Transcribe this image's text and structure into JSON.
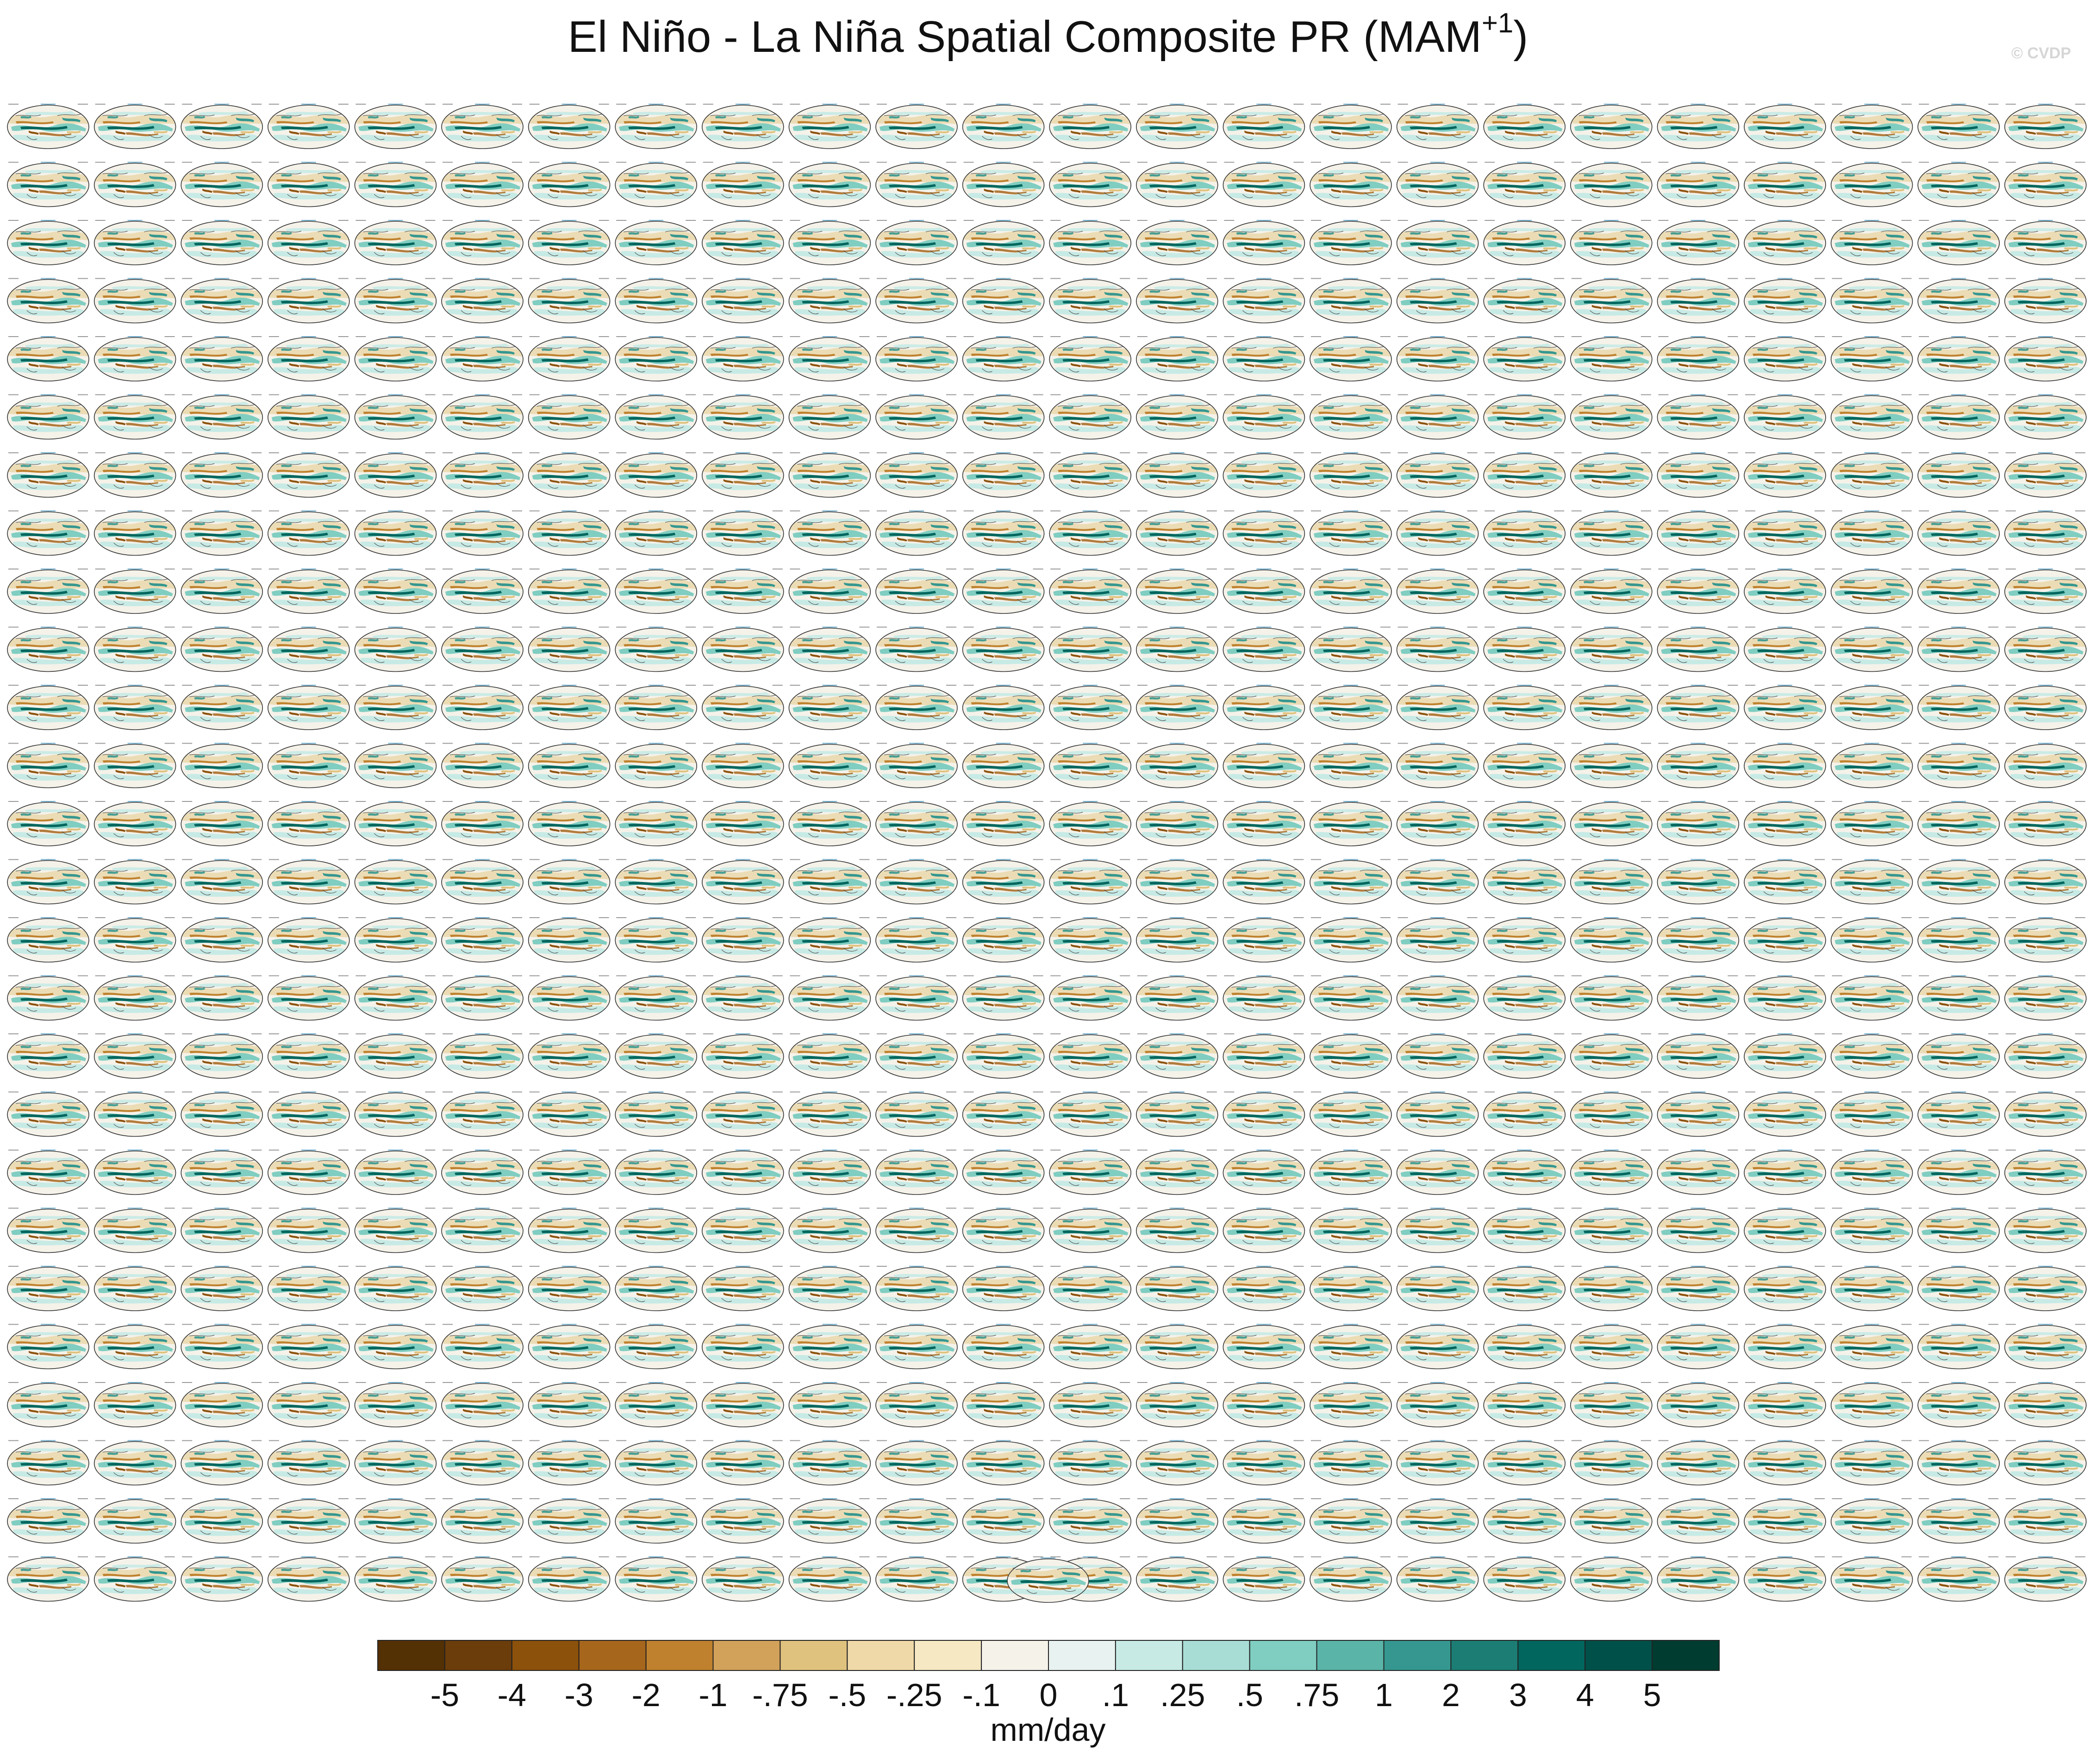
{
  "chart_data": {
    "type": "heatmap",
    "title": "El Niño - La Niña Spatial Composite PR (MAM",
    "title_superscript": "+1",
    "title_close": ")",
    "watermark": "© CVDP",
    "panel_grid": {
      "rows": 26,
      "columns": 24,
      "extra_panels": 1
    },
    "colorbar": {
      "unit": "mm/day",
      "levels": [
        "-5",
        "-4",
        "-3",
        "-2",
        "-1",
        "-.75",
        "-.5",
        "-.25",
        "-.1",
        "0",
        ".1",
        ".25",
        ".5",
        ".75",
        "1",
        "2",
        "3",
        "4",
        "5"
      ],
      "colors": [
        "#543005",
        "#6b3d0a",
        "#8c510a",
        "#a6661c",
        "#bf812d",
        "#d2a25a",
        "#dfc27d",
        "#f0d9a8",
        "#f6e8c3",
        "#f5f2ea",
        "#e8f2f0",
        "#c7eae5",
        "#a8ddd5",
        "#80cdc1",
        "#5ab4a8",
        "#35978f",
        "#1b7d74",
        "#01665e",
        "#00504a",
        "#003c30"
      ]
    }
  }
}
